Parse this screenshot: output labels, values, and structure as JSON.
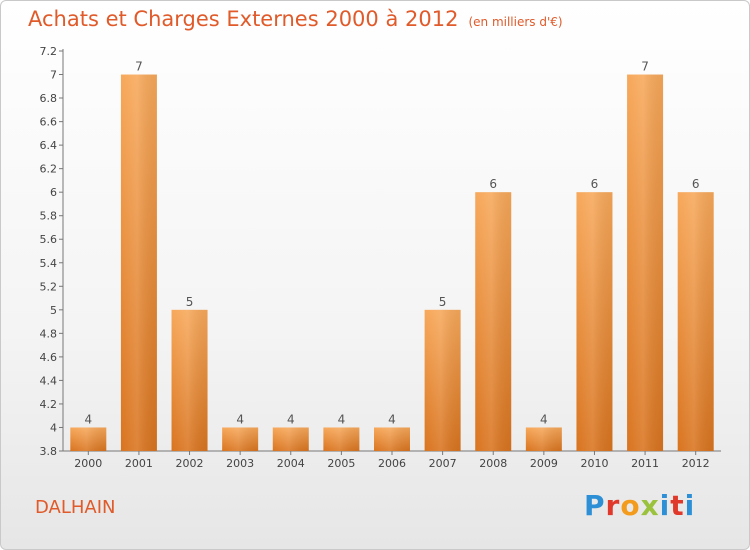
{
  "header": {
    "title": "Achats et Charges Externes 2000 à 2012",
    "subtitle": "(en milliers d'€)"
  },
  "footer": {
    "commune": "DALHAIN",
    "logo": [
      "P",
      "r",
      "o",
      "x",
      "i",
      "t",
      "i"
    ]
  },
  "colors": {
    "title": "#e05a2a",
    "bar_top": "#f7a85a",
    "bar_bottom": "#d9741f"
  },
  "chart_data": {
    "type": "bar",
    "categories": [
      "2000",
      "2001",
      "2002",
      "2003",
      "2004",
      "2005",
      "2006",
      "2007",
      "2008",
      "2009",
      "2010",
      "2011",
      "2012"
    ],
    "values": [
      4,
      7,
      5,
      4,
      4,
      4,
      4,
      5,
      6,
      4,
      6,
      7,
      6
    ],
    "data_labels": [
      "4",
      "7",
      "5",
      "4",
      "4",
      "4",
      "4",
      "5",
      "6",
      "4",
      "6",
      "7",
      "6"
    ],
    "y_ticks": [
      3.8,
      4,
      4.2,
      4.4,
      4.6,
      4.8,
      5,
      5.2,
      5.4,
      5.6,
      5.8,
      6,
      6.2,
      6.4,
      6.6,
      6.8,
      7,
      7.2
    ],
    "y_tick_labels": [
      "3.8",
      "4",
      "4.2",
      "4.4",
      "4.6",
      "4.8",
      "5",
      "5.2",
      "5.4",
      "5.6",
      "5.8",
      "6",
      "6.2",
      "6.4",
      "6.6",
      "6.8",
      "7",
      "7.2"
    ],
    "ylim": [
      3.8,
      7.2
    ],
    "title": "Achats et Charges Externes 2000 à 2012",
    "xlabel": "",
    "ylabel": "",
    "grid": false,
    "legend": "none"
  }
}
